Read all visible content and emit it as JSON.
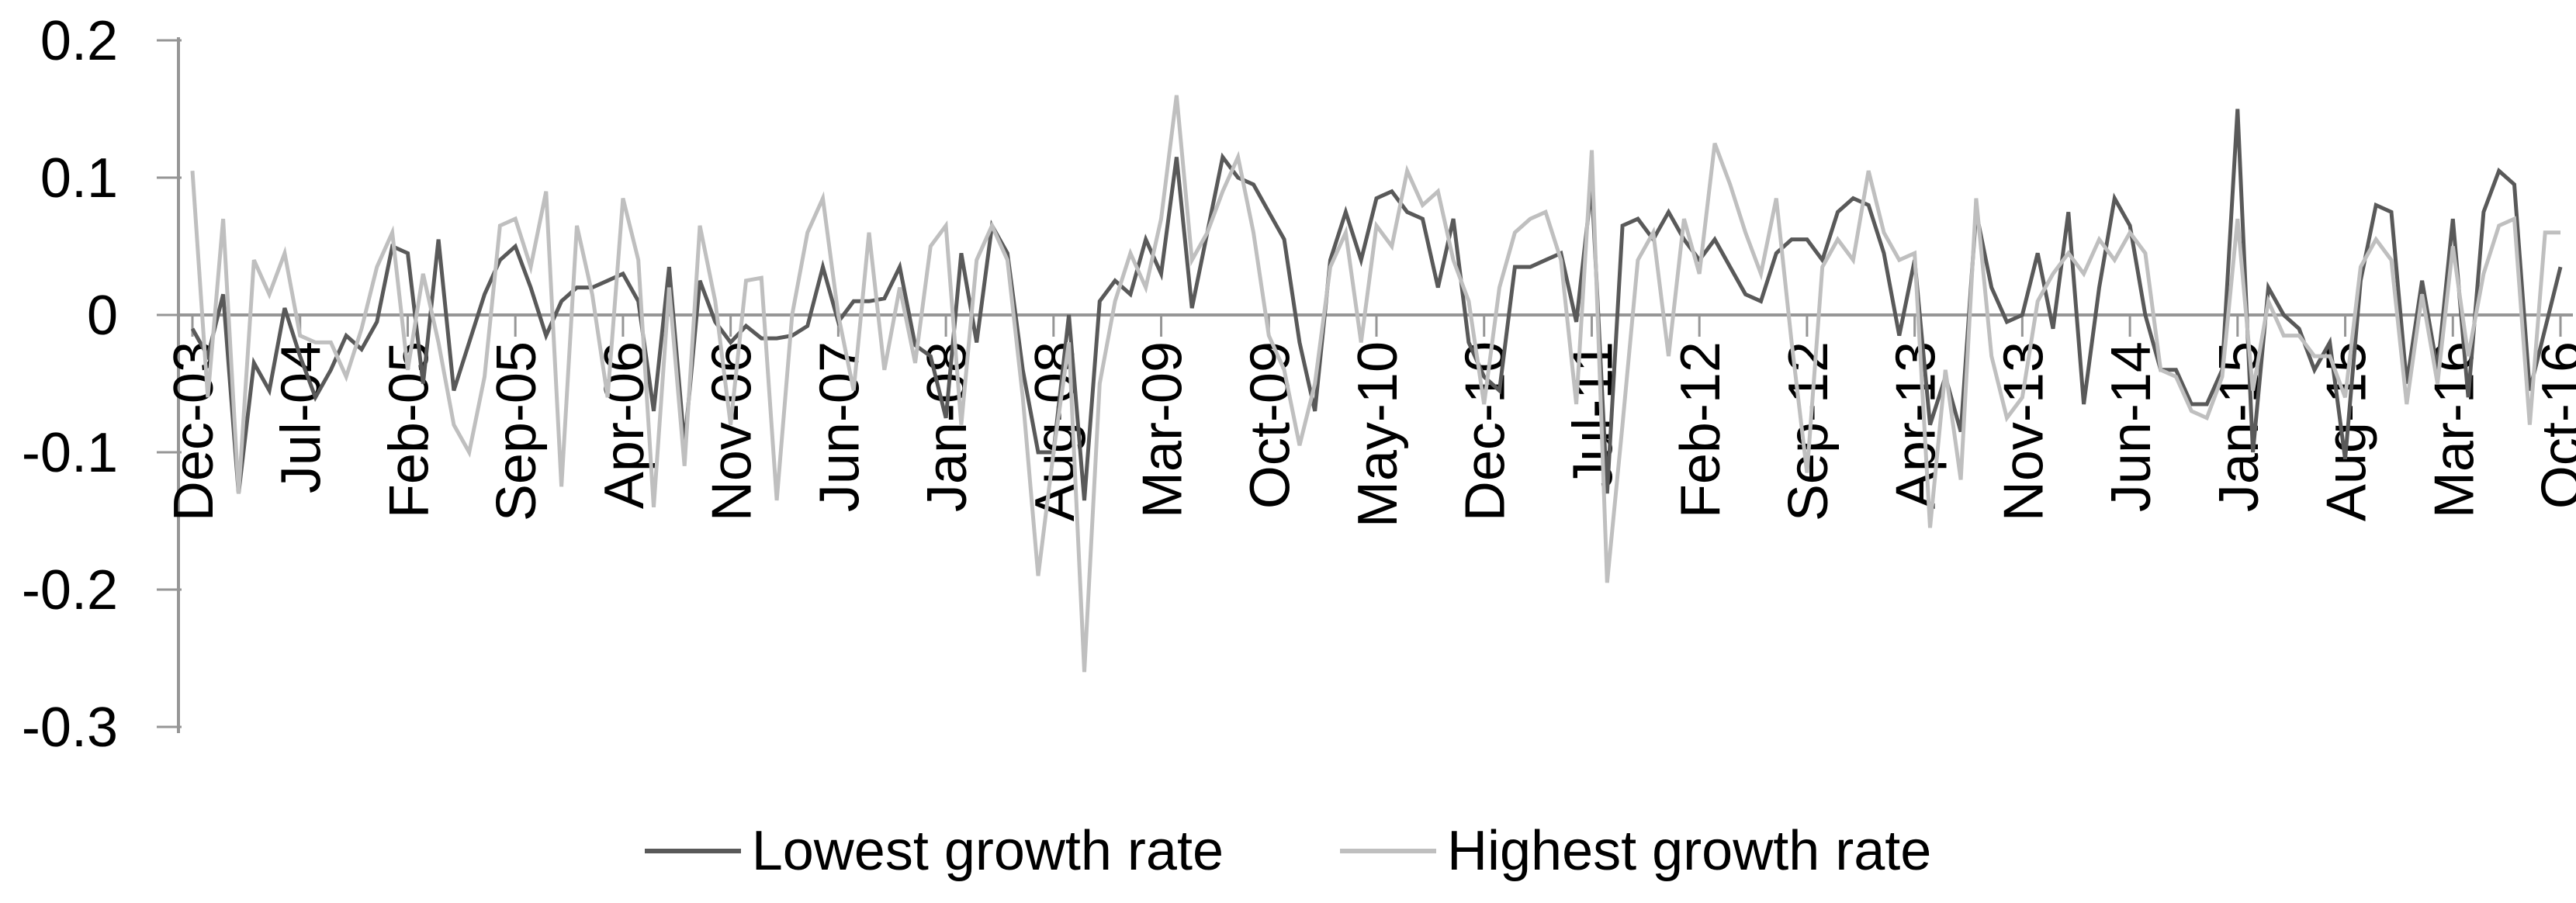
{
  "chart_data": {
    "type": "line",
    "title": "",
    "xlabel": "",
    "ylabel": "",
    "grid": false,
    "legend_position": "bottom",
    "background_color": "#ffffff",
    "axis_color": "#969696",
    "text_color": "#000000",
    "x_axis": {
      "start_label": "Dec-03",
      "end_label": "Oct-16",
      "points_count": 155,
      "tick_interval_months": 7,
      "tick_labels": [
        "Dec-03",
        "Jul-04",
        "Feb-05",
        "Sep-05",
        "Apr-06",
        "Nov-06",
        "Jun-07",
        "Jan-08",
        "Aug-08",
        "Mar-09",
        "Oct-09",
        "May-10",
        "Dec-10",
        "Jul-11",
        "Feb-12",
        "Sep-12",
        "Apr-13",
        "Nov-13",
        "Jun-14",
        "Jan-15",
        "Aug-15",
        "Mar-16",
        "Oct-16"
      ]
    },
    "y_axis": {
      "min": -0.3,
      "max": 0.2,
      "tick_values": [
        0.2,
        0.1,
        0,
        -0.1,
        -0.2,
        -0.3
      ],
      "tick_labels": [
        "0.2",
        "0.1",
        "0",
        "-0.1",
        "-0.2",
        "-0.3"
      ]
    },
    "series": [
      {
        "name": "Lowest growth rate",
        "color": "#595959",
        "values": [
          -0.01,
          -0.03,
          0.015,
          -0.13,
          -0.035,
          -0.055,
          0.005,
          -0.03,
          -0.06,
          -0.04,
          -0.015,
          -0.025,
          -0.005,
          0.05,
          0.045,
          -0.05,
          0.055,
          -0.055,
          -0.02,
          0.015,
          0.04,
          0.05,
          0.02,
          -0.015,
          0.01,
          0.02,
          0.02,
          0.025,
          0.03,
          0.01,
          -0.07,
          0.035,
          -0.095,
          0.025,
          -0.005,
          -0.02,
          -0.008,
          -0.017,
          -0.017,
          -0.015,
          -0.008,
          0.035,
          -0.005,
          0.01,
          0.01,
          0.012,
          0.035,
          -0.022,
          -0.03,
          -0.075,
          0.045,
          -0.02,
          0.065,
          0.045,
          -0.04,
          -0.1,
          -0.1,
          0.0,
          -0.135,
          0.01,
          0.025,
          0.015,
          0.055,
          0.03,
          0.115,
          0.005,
          0.06,
          0.115,
          0.1,
          0.095,
          0.075,
          0.055,
          -0.02,
          -0.07,
          0.04,
          0.075,
          0.04,
          0.085,
          0.09,
          0.075,
          0.07,
          0.02,
          0.07,
          -0.02,
          -0.045,
          -0.055,
          0.035,
          0.035,
          0.04,
          0.045,
          -0.005,
          0.095,
          -0.13,
          0.065,
          0.07,
          0.055,
          0.075,
          0.055,
          0.04,
          0.055,
          0.035,
          0.015,
          0.01,
          0.045,
          0.055,
          0.055,
          0.04,
          0.075,
          0.085,
          0.08,
          0.045,
          -0.015,
          0.04,
          -0.08,
          -0.045,
          -0.085,
          0.075,
          0.02,
          -0.005,
          0.0,
          0.045,
          -0.01,
          0.075,
          -0.065,
          0.02,
          0.085,
          0.065,
          0.0,
          -0.04,
          -0.04,
          -0.065,
          -0.065,
          -0.04,
          0.15,
          -0.1,
          0.02,
          0.0,
          -0.01,
          -0.04,
          -0.02,
          -0.105,
          0.025,
          0.08,
          0.075,
          -0.05,
          0.025,
          -0.04,
          0.07,
          -0.06,
          0.075,
          0.105,
          0.095,
          -0.055,
          -0.01,
          0.035
        ]
      },
      {
        "name": "Highest growth rate",
        "color": "#bfbfbf",
        "values": [
          0.105,
          -0.06,
          0.07,
          -0.13,
          0.04,
          0.015,
          0.045,
          -0.015,
          -0.02,
          -0.02,
          -0.045,
          -0.01,
          0.035,
          0.06,
          -0.04,
          0.03,
          -0.02,
          -0.08,
          -0.1,
          -0.045,
          0.065,
          0.07,
          0.035,
          0.09,
          -0.125,
          0.065,
          0.015,
          -0.06,
          0.085,
          0.04,
          -0.14,
          0.02,
          -0.11,
          0.065,
          0.01,
          -0.08,
          0.025,
          0.027,
          -0.135,
          0.0,
          0.06,
          0.085,
          0.0,
          -0.055,
          0.06,
          -0.04,
          0.02,
          -0.035,
          0.05,
          0.065,
          -0.08,
          0.04,
          0.065,
          0.04,
          -0.06,
          -0.19,
          -0.1,
          -0.02,
          -0.26,
          -0.05,
          0.01,
          0.045,
          0.02,
          0.07,
          0.16,
          0.04,
          0.06,
          0.09,
          0.115,
          0.06,
          -0.015,
          -0.04,
          -0.095,
          -0.05,
          0.035,
          0.06,
          -0.02,
          0.065,
          0.05,
          0.105,
          0.08,
          0.09,
          0.04,
          0.01,
          -0.065,
          0.02,
          0.06,
          0.07,
          0.075,
          0.04,
          -0.065,
          0.12,
          -0.195,
          -0.08,
          0.04,
          0.06,
          -0.03,
          0.07,
          0.03,
          0.125,
          0.095,
          0.06,
          0.03,
          0.085,
          -0.02,
          -0.115,
          0.035,
          0.055,
          0.04,
          0.105,
          0.06,
          0.04,
          0.045,
          -0.155,
          -0.04,
          -0.12,
          0.085,
          -0.03,
          -0.075,
          -0.06,
          0.01,
          0.03,
          0.045,
          0.03,
          0.055,
          0.04,
          0.06,
          0.045,
          -0.04,
          -0.045,
          -0.07,
          -0.075,
          -0.045,
          0.07,
          -0.055,
          0.01,
          -0.015,
          -0.015,
          -0.03,
          -0.03,
          -0.06,
          0.035,
          0.055,
          0.04,
          -0.065,
          0.015,
          -0.05,
          0.05,
          -0.03,
          0.03,
          0.065,
          0.07,
          -0.08,
          0.06,
          0.06
        ]
      }
    ]
  }
}
